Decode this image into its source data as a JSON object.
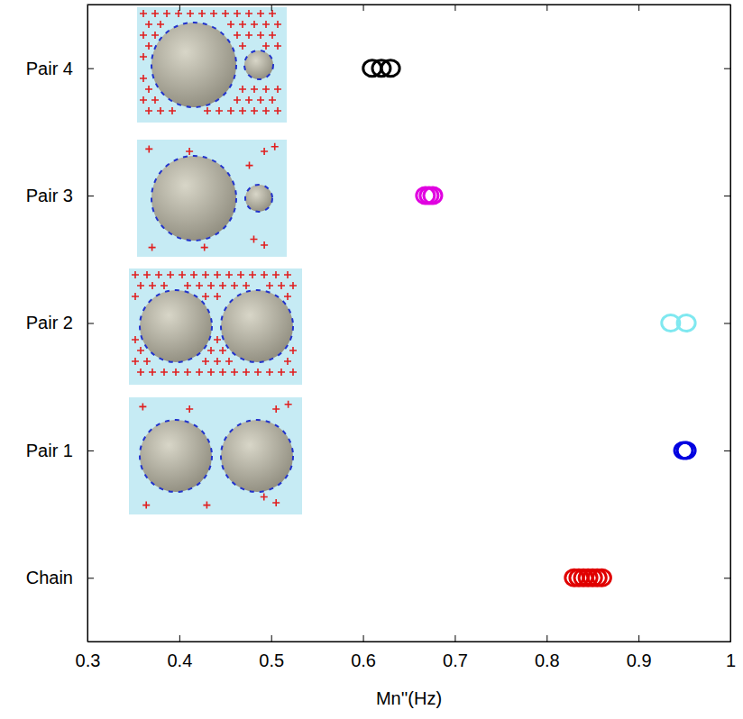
{
  "chart_data": {
    "type": "scatter",
    "x_label": "Mn''(Hz)",
    "xlim": [
      0.3,
      1
    ],
    "xticks": [
      0.3,
      0.4,
      0.5,
      0.6,
      0.7,
      0.8,
      0.9,
      1
    ],
    "categories": [
      "Chain",
      "Pair 1",
      "Pair 2",
      "Pair 3",
      "Pair 4"
    ],
    "marker": "circle",
    "grid": false,
    "series": [
      {
        "color": "#e00000",
        "x": [
          0.83,
          0.835,
          0.84,
          0.845,
          0.85,
          0.855,
          0.86
        ]
      },
      {
        "color": "#0000e0",
        "x": [
          0.949,
          0.952
        ]
      },
      {
        "color": "#7fe8f0",
        "x": [
          0.935,
          0.952
        ]
      },
      {
        "color": "#e000e0",
        "x": [
          0.668,
          0.672,
          0.676
        ]
      },
      {
        "color": "#000000",
        "x": [
          0.61,
          0.62,
          0.63
        ]
      }
    ]
  }
}
